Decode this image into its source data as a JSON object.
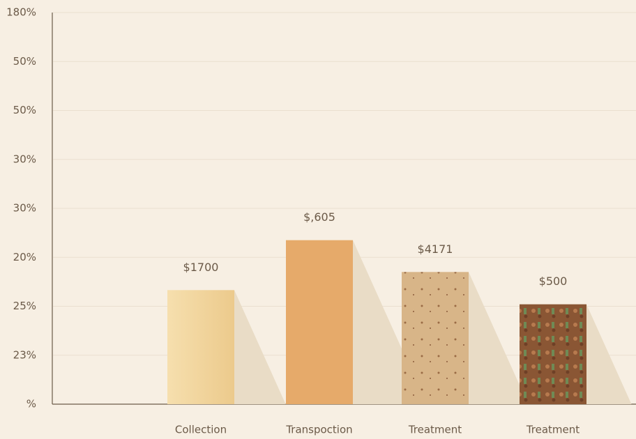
{
  "chart_data": {
    "type": "bar",
    "categories": [
      "Collection",
      "Transpoction",
      "Treatment",
      "Treatment"
    ],
    "values": [
      2.33,
      3.35,
      2.7,
      2.04
    ],
    "annotations": [
      "$1700",
      "$,605",
      "$4171",
      "$500"
    ],
    "colors": [
      "#f0d49c",
      "#e6aa6a",
      "#d8b588",
      "#8a5634"
    ],
    "ylim": [
      0,
      8
    ],
    "yticks": [
      {
        "value": 0,
        "label": "%"
      },
      {
        "value": 1,
        "label": "23%"
      },
      {
        "value": 2,
        "label": "25%"
      },
      {
        "value": 3,
        "label": "20%"
      },
      {
        "value": 4,
        "label": "30%"
      },
      {
        "value": 5,
        "label": "30%"
      },
      {
        "value": 6,
        "label": "50%"
      },
      {
        "value": 7,
        "label": "50%"
      },
      {
        "value": 8,
        "label": "180%"
      }
    ],
    "grid": true
  }
}
